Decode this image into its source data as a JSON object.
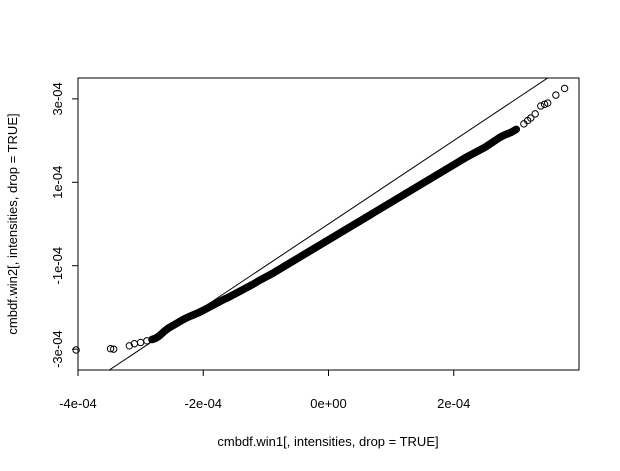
{
  "chart_data": {
    "type": "scatter",
    "title": "",
    "xlabel": "cmbdf.win1[, intensities, drop = TRUE]",
    "ylabel": "cmbdf.win2[, intensities, drop = TRUE]",
    "xlim": [
      -0.0004,
      0.0004
    ],
    "ylim": [
      -0.00035,
      0.00035
    ],
    "grid": false,
    "legend": "none",
    "x_ticks": [
      {
        "value": -0.0004,
        "label": "-4e-04"
      },
      {
        "value": -0.0002,
        "label": "-2e-04"
      },
      {
        "value": 0.0,
        "label": "0e+00"
      },
      {
        "value": 0.0002,
        "label": "2e-04"
      }
    ],
    "y_ticks": [
      {
        "value": -0.0003,
        "label": "-3e-04"
      },
      {
        "value": -0.0001,
        "label": "-1e-04"
      },
      {
        "value": 0.0001,
        "label": "1e-04"
      },
      {
        "value": 0.0003,
        "label": "3e-04"
      }
    ],
    "reference_line": {
      "intercept": 0,
      "slope": 1
    },
    "points": [
      [
        -0.000403,
        -0.000302
      ],
      [
        -0.000348,
        -0.000299
      ],
      [
        -0.000343,
        -0.0003
      ],
      [
        -0.000318,
        -0.000292
      ],
      [
        -0.00031,
        -0.000287
      ],
      [
        -0.0003,
        -0.000284
      ],
      [
        -0.00029,
        -0.00028
      ],
      [
        -0.000282,
        -0.000277
      ],
      [
        -0.000276,
        -0.000274
      ],
      [
        -0.00027,
        -0.000268
      ],
      [
        -0.000262,
        -0.000257
      ],
      [
        -0.000255,
        -0.000249
      ],
      [
        -0.000248,
        -0.000243
      ],
      [
        -0.00024,
        -0.000236
      ],
      [
        -0.000232,
        -0.000229
      ],
      [
        -0.000224,
        -0.000223
      ],
      [
        -0.000216,
        -0.000218
      ],
      [
        -0.000208,
        -0.000213
      ],
      [
        -0.0002,
        -0.000207
      ],
      [
        -0.00019,
        -0.000199
      ],
      [
        -0.00018,
        -0.000191
      ],
      [
        -0.00017,
        -0.000183
      ],
      [
        -0.00016,
        -0.000176
      ],
      [
        -0.00015,
        -0.000168
      ],
      [
        -0.00014,
        -0.00016
      ],
      [
        -0.00013,
        -0.000152
      ],
      [
        -0.00012,
        -0.000144
      ],
      [
        -0.00011,
        -0.000135
      ],
      [
        -0.0001,
        -0.000127
      ],
      [
        -9e-05,
        -0.000119
      ],
      [
        -8e-05,
        -0.00011
      ],
      [
        -7e-05,
        -0.000101
      ],
      [
        -6e-05,
        -9.2e-05
      ],
      [
        -5e-05,
        -8.3e-05
      ],
      [
        -4e-05,
        -7.4e-05
      ],
      [
        -3e-05,
        -6.5e-05
      ],
      [
        -2e-05,
        -5.6e-05
      ],
      [
        -1e-05,
        -4.7e-05
      ],
      [
        0.0,
        -3.8e-05
      ],
      [
        1e-05,
        -2.9e-05
      ],
      [
        2e-05,
        -2e-05
      ],
      [
        3e-05,
        -1.1e-05
      ],
      [
        4e-05,
        -2e-06
      ],
      [
        5e-05,
        7e-06
      ],
      [
        6e-05,
        1.6e-05
      ],
      [
        7e-05,
        2.5e-05
      ],
      [
        8e-05,
        3.4e-05
      ],
      [
        9e-05,
        4.3e-05
      ],
      [
        0.0001,
        5.2e-05
      ],
      [
        0.00011,
        6.1e-05
      ],
      [
        0.00012,
        7e-05
      ],
      [
        0.00013,
        7.9e-05
      ],
      [
        0.00014,
        8.8e-05
      ],
      [
        0.00015,
        9.7e-05
      ],
      [
        0.00016,
        0.000106
      ],
      [
        0.00017,
        0.000115
      ],
      [
        0.00018,
        0.000124
      ],
      [
        0.00019,
        0.000133
      ],
      [
        0.0002,
        0.000142
      ],
      [
        0.00021,
        0.000151
      ],
      [
        0.00022,
        0.00016
      ],
      [
        0.00023,
        0.000168
      ],
      [
        0.00024,
        0.000176
      ],
      [
        0.00025,
        0.000184
      ],
      [
        0.000258,
        0.000192
      ],
      [
        0.000266,
        0.0002
      ],
      [
        0.000274,
        0.000208
      ],
      [
        0.000282,
        0.000214
      ],
      [
        0.000292,
        0.00022
      ],
      [
        0.0003,
        0.000227
      ],
      [
        0.000312,
        0.00024
      ],
      [
        0.000318,
        0.000248
      ],
      [
        0.000323,
        0.000254
      ],
      [
        0.00033,
        0.000264
      ],
      [
        0.000339,
        0.000283
      ],
      [
        0.000345,
        0.000287
      ],
      [
        0.00035,
        0.00029
      ],
      [
        0.000363,
        0.000309
      ],
      [
        0.000377,
        0.000325
      ]
    ]
  }
}
